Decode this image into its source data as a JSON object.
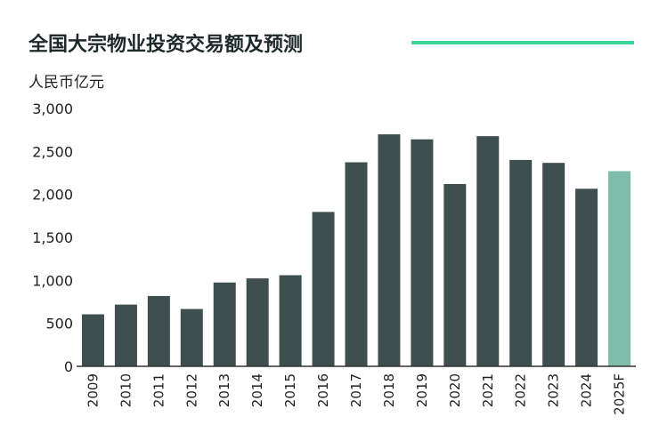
{
  "chart_data": {
    "type": "bar",
    "title": "全国大宗物业投资交易额及预测",
    "ylabel": "人民币亿元",
    "xlabel": "",
    "ylim": [
      0,
      3000
    ],
    "yticks": [
      "0",
      "500",
      "1,000",
      "1,500",
      "2,000",
      "2,500",
      "3,000"
    ],
    "ytick_values": [
      0,
      500,
      1000,
      1500,
      2000,
      2500,
      3000
    ],
    "categories": [
      "2009",
      "2010",
      "2011",
      "2012",
      "2013",
      "2014",
      "2015",
      "2016",
      "2017",
      "2018",
      "2019",
      "2020",
      "2021",
      "2022",
      "2023",
      "2024",
      "2025F"
    ],
    "values": [
      605,
      718,
      818,
      667,
      975,
      1023,
      1060,
      1796,
      2374,
      2699,
      2641,
      2121,
      2678,
      2401,
      2367,
      2066,
      2271
    ],
    "forecast": [
      false,
      false,
      false,
      false,
      false,
      false,
      false,
      false,
      false,
      false,
      false,
      false,
      false,
      false,
      false,
      false,
      true
    ],
    "grid": false,
    "colors": {
      "actual": "#3f4e4e",
      "forecast": "#7fbcaa",
      "accent": "#3ad49a"
    }
  }
}
